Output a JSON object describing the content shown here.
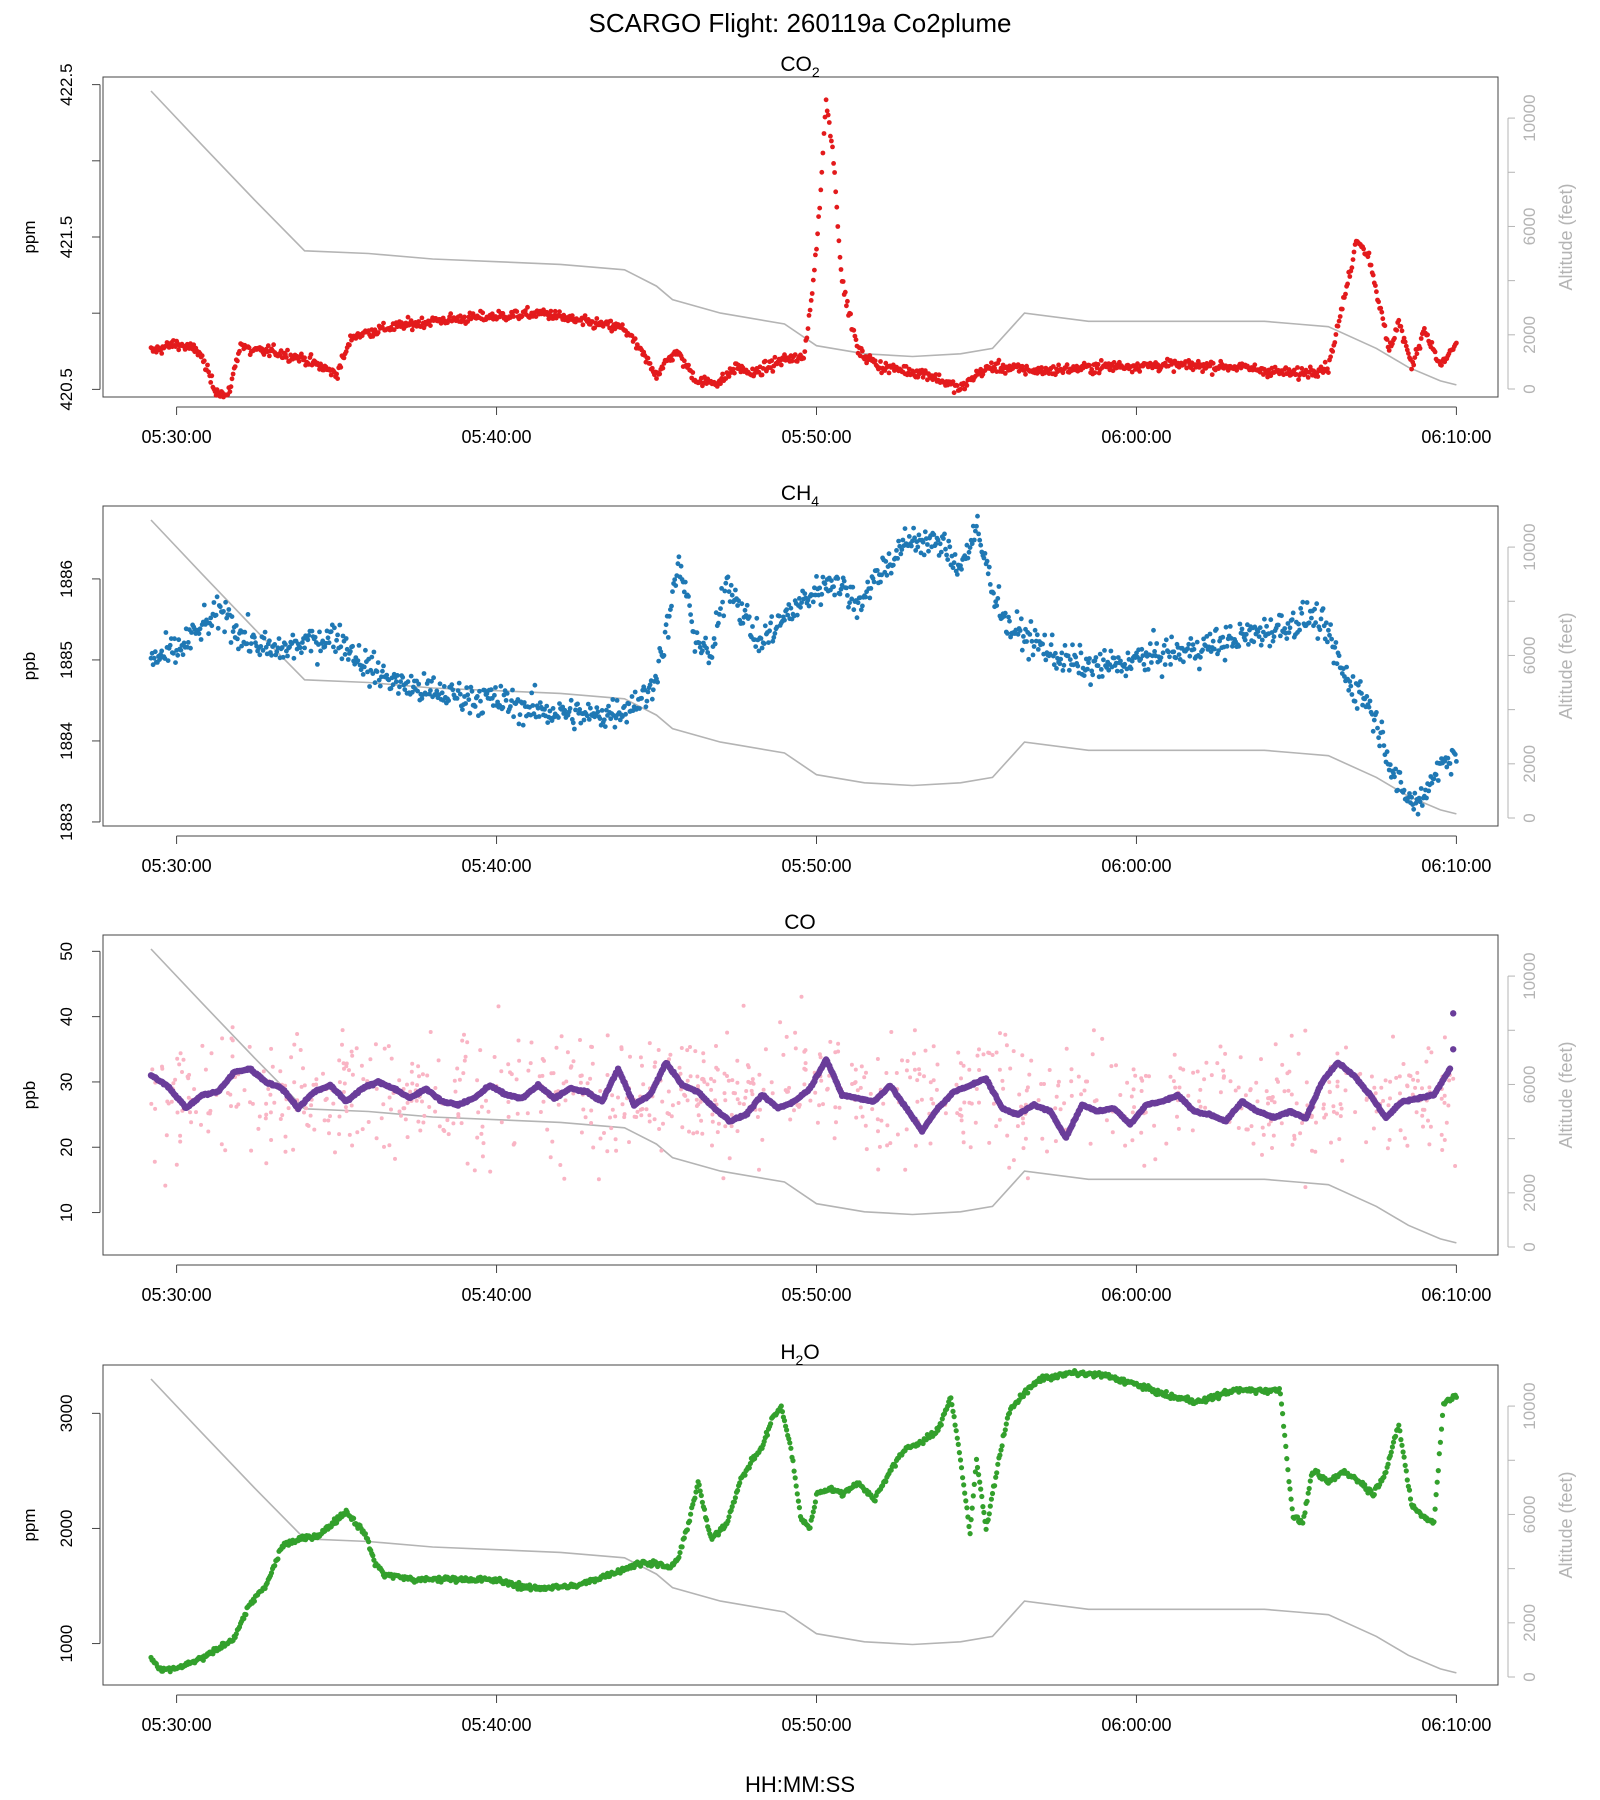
{
  "figure": {
    "title": "SCARGO Flight: 260119a  Co2plume",
    "xlabel": "HH:MM:SS",
    "x_ticks": [
      "05:30:00",
      "05:40:00",
      "05:50:00",
      "06:00:00",
      "06:10:00"
    ],
    "right_axis_label": "Altitude (feet)",
    "altitude_ticks": [
      0,
      2000,
      6000,
      10000
    ],
    "altitude_range": [
      0,
      11000
    ],
    "colors": {
      "co2": "#e31a1c",
      "ch4": "#1f78b4",
      "co_raw": "#f9b4c4",
      "co_smooth": "#6a3d9a",
      "h2o": "#33a02c",
      "altitude": "#b4b4b4",
      "axis": "#444444"
    }
  },
  "altitude_profile": {
    "name": "Altitude (feet)",
    "time_min": [
      -0.8,
      0.8,
      2.5,
      4.0,
      6.0,
      8.0,
      10.0,
      12.0,
      14.0,
      15.0,
      15.5,
      17.0,
      19.0,
      20.0,
      21.5,
      23.0,
      24.5,
      25.5,
      26.5,
      28.5,
      30.0,
      32.0,
      34.0,
      35.0,
      36.0,
      37.5,
      38.5,
      39.5,
      40.0
    ],
    "feet": [
      11000,
      9000,
      6900,
      5100,
      5000,
      4800,
      4700,
      4600,
      4400,
      3800,
      3300,
      2800,
      2400,
      1600,
      1300,
      1200,
      1300,
      1500,
      2800,
      2500,
      2500,
      2500,
      2500,
      2400,
      2300,
      1500,
      800,
      300,
      150
    ]
  },
  "chart_data": [
    {
      "type": "scatter",
      "title": "CO2",
      "title_main": "CO",
      "title_sub": "2",
      "ylabel": "ppm",
      "ylim": [
        420.45,
        422.55
      ],
      "yticks": [
        420.5,
        421.5,
        422.5
      ],
      "xlabel": "HH:MM:SS",
      "x_unit": "minutes after 05:30:00",
      "xlim": [
        -2.3,
        41.3
      ],
      "series": [
        {
          "name": "CO2",
          "color": "#e31a1c",
          "point_size": 2.4,
          "x": [
            -0.8,
            0,
            0.7,
            1.2,
            1.6,
            2.0,
            2.3,
            3.0,
            4.0,
            5.0,
            5.5,
            6.5,
            8.0,
            10.0,
            11.5,
            12.5,
            14.0,
            15.0,
            15.6,
            16.3,
            17.0,
            17.5,
            18.0,
            19.0,
            19.6,
            19.9,
            20.1,
            20.3,
            20.5,
            20.8,
            21.3,
            22.0,
            23.5,
            24.5,
            25.0,
            25.5,
            27.0,
            29.0,
            31.0,
            33.0,
            35.0,
            36.0,
            36.5,
            36.9,
            37.3,
            37.9,
            38.2,
            38.6,
            39.0,
            39.5,
            40.0
          ],
          "y": [
            420.75,
            420.8,
            420.75,
            420.5,
            420.45,
            420.8,
            420.75,
            420.75,
            420.7,
            420.6,
            420.85,
            420.9,
            420.95,
            420.98,
            421.0,
            420.95,
            420.9,
            420.6,
            420.75,
            420.55,
            420.55,
            420.65,
            420.6,
            420.7,
            420.7,
            421.2,
            421.7,
            422.4,
            422.1,
            421.2,
            420.75,
            420.65,
            420.6,
            420.5,
            420.6,
            420.65,
            420.62,
            420.65,
            420.66,
            420.65,
            420.6,
            420.65,
            421.1,
            421.5,
            421.35,
            420.75,
            420.95,
            420.65,
            420.9,
            420.65,
            420.8
          ]
        }
      ]
    },
    {
      "type": "scatter",
      "title": "CH4",
      "title_main": "CH",
      "title_sub": "4",
      "ylabel": "ppb",
      "ylim": [
        1882.95,
        1886.9
      ],
      "yticks": [
        1883,
        1884,
        1885,
        1886
      ],
      "xlabel": "HH:MM:SS",
      "x_unit": "minutes after 05:30:00",
      "xlim": [
        -2.3,
        41.3
      ],
      "series": [
        {
          "name": "CH4",
          "color": "#1f78b4",
          "point_size": 2.4,
          "x": [
            -0.8,
            0,
            0.8,
            1.5,
            2.0,
            3.0,
            4.0,
            5.0,
            6.0,
            7.0,
            8.0,
            9.0,
            10.0,
            11.0,
            12.0,
            13.0,
            14.0,
            14.8,
            15.3,
            15.7,
            16.2,
            16.7,
            17.2,
            17.7,
            18.2,
            18.7,
            19.5,
            20.5,
            21.3,
            22.0,
            23.0,
            24.0,
            24.5,
            25.0,
            25.5,
            26.0,
            26.5,
            27.5,
            28.5,
            29.5,
            30.5,
            31.5,
            32.5,
            33.5,
            34.5,
            35.5,
            36.0,
            36.5,
            37.2,
            37.7,
            38.2,
            38.8,
            39.3,
            40.0
          ],
          "y": [
            1885.0,
            1885.1,
            1885.4,
            1885.6,
            1885.3,
            1885.1,
            1885.2,
            1885.3,
            1884.9,
            1884.7,
            1884.6,
            1884.55,
            1884.5,
            1884.4,
            1884.35,
            1884.3,
            1884.4,
            1884.6,
            1885.3,
            1886.2,
            1885.3,
            1885.0,
            1886.0,
            1885.6,
            1885.2,
            1885.4,
            1885.7,
            1886.0,
            1885.7,
            1886.1,
            1886.5,
            1886.4,
            1886.15,
            1886.6,
            1885.9,
            1885.4,
            1885.3,
            1885.05,
            1884.9,
            1884.95,
            1885.05,
            1885.1,
            1885.2,
            1885.3,
            1885.4,
            1885.55,
            1885.3,
            1884.8,
            1884.5,
            1884.05,
            1883.4,
            1883.2,
            1883.6,
            1883.9
          ]
        }
      ]
    },
    {
      "type": "scatter",
      "title": "CO",
      "title_main": "CO",
      "title_sub": "",
      "ylabel": "ppb",
      "ylim": [
        3.5,
        52.5
      ],
      "yticks": [
        10,
        20,
        30,
        40,
        50
      ],
      "xlabel": "HH:MM:SS",
      "x_unit": "minutes after 05:30:00",
      "xlim": [
        -2.3,
        41.3
      ],
      "series": [
        {
          "name": "CO raw",
          "color": "#f9b4c4",
          "point_size": 2.0,
          "noise_band": 9,
          "x": [
            -0.8,
            40.0
          ],
          "y": [
            28,
            28
          ]
        },
        {
          "name": "CO smoothed",
          "color": "#6a3d9a",
          "point_size": 3.2,
          "x": [
            -0.8,
            -0.3,
            0.3,
            0.8,
            1.3,
            1.8,
            2.3,
            2.8,
            3.3,
            3.8,
            4.3,
            4.8,
            5.3,
            5.8,
            6.3,
            6.8,
            7.3,
            7.8,
            8.3,
            8.8,
            9.3,
            9.8,
            10.3,
            10.8,
            11.3,
            11.8,
            12.3,
            12.8,
            13.3,
            13.8,
            14.3,
            14.8,
            15.3,
            15.8,
            16.3,
            16.8,
            17.3,
            17.8,
            18.3,
            18.8,
            19.3,
            19.8,
            20.3,
            20.8,
            21.3,
            21.8,
            22.3,
            22.8,
            23.3,
            23.8,
            24.3,
            24.8,
            25.3,
            25.8,
            26.3,
            26.8,
            27.3,
            27.8,
            28.3,
            28.8,
            29.3,
            29.8,
            30.3,
            30.8,
            31.3,
            31.8,
            32.3,
            32.8,
            33.3,
            33.8,
            34.3,
            34.8,
            35.3,
            35.8,
            36.3,
            36.8,
            37.3,
            37.8,
            38.3,
            38.8,
            39.3,
            39.8
          ],
          "y": [
            31,
            29.5,
            26,
            28,
            28.5,
            31.5,
            32,
            30,
            29,
            26,
            28.5,
            29.5,
            27,
            29,
            30,
            29,
            27.5,
            29,
            27,
            26.5,
            27.5,
            29.5,
            28,
            27.5,
            29.5,
            27.5,
            29,
            28.5,
            27,
            32,
            26.5,
            28,
            33,
            29.5,
            28.5,
            26,
            24,
            25,
            28,
            26,
            27,
            29,
            33.5,
            28,
            27.5,
            27,
            29.5,
            26,
            22.5,
            26,
            28.5,
            29.5,
            30.5,
            26,
            25,
            26.5,
            25.5,
            21.5,
            26.5,
            25.5,
            26,
            23.5,
            26.5,
            27,
            28,
            25.5,
            25,
            24,
            27,
            25.5,
            24.5,
            25.5,
            24.5,
            30,
            33,
            31,
            28,
            24.5,
            27,
            27.5,
            28,
            32
          ]
        },
        {
          "name": "CO end points",
          "color": "#6a3d9a",
          "point_size": 3.2,
          "x": [
            39.9,
            39.9
          ],
          "y": [
            40.5,
            35
          ]
        }
      ]
    },
    {
      "type": "scatter",
      "title": "H2O",
      "title_main": "H",
      "title_sub": "2",
      "title_tail": "O",
      "ylabel": "ppm",
      "ylim": [
        640,
        3420
      ],
      "yticks": [
        1000,
        2000,
        3000
      ],
      "xlabel": "HH:MM:SS",
      "x_unit": "minutes after 05:30:00",
      "xlim": [
        -2.3,
        41.3
      ],
      "series": [
        {
          "name": "H2O",
          "color": "#33a02c",
          "point_size": 2.6,
          "x": [
            -0.8,
            -0.5,
            0.2,
            1.0,
            1.8,
            2.3,
            2.8,
            3.3,
            3.8,
            4.5,
            5.3,
            5.9,
            6.2,
            6.5,
            7.0,
            7.5,
            8.0,
            9.0,
            10.0,
            11.0,
            12.5,
            13.5,
            14.5,
            15.0,
            15.4,
            15.7,
            16.0,
            16.3,
            16.7,
            17.2,
            17.6,
            18.0,
            18.3,
            18.6,
            18.9,
            19.2,
            19.5,
            19.8,
            20.0,
            20.4,
            20.8,
            21.3,
            21.8,
            22.3,
            22.8,
            23.3,
            23.8,
            24.2,
            24.5,
            24.8,
            25.0,
            25.3,
            25.7,
            26.0,
            26.4,
            27.0,
            28.0,
            29.0,
            30.0,
            31.0,
            32.0,
            33.0,
            34.0,
            34.5,
            34.7,
            34.9,
            35.2,
            35.5,
            36.0,
            36.5,
            37.0,
            37.4,
            37.8,
            38.2,
            38.6,
            39.0,
            39.3,
            39.6,
            40.0
          ],
          "y": [
            880,
            760,
            800,
            900,
            1050,
            1350,
            1500,
            1850,
            1900,
            1950,
            2150,
            1950,
            1700,
            1600,
            1580,
            1550,
            1560,
            1560,
            1550,
            1480,
            1500,
            1600,
            1700,
            1700,
            1650,
            1750,
            2050,
            2400,
            1900,
            2050,
            2400,
            2600,
            2700,
            2950,
            3050,
            2700,
            2100,
            2000,
            2300,
            2350,
            2300,
            2400,
            2250,
            2500,
            2700,
            2750,
            2850,
            3150,
            2600,
            1950,
            2600,
            2000,
            2600,
            3000,
            3150,
            3300,
            3350,
            3330,
            3250,
            3150,
            3100,
            3200,
            3200,
            3200,
            2600,
            2100,
            2050,
            2500,
            2400,
            2500,
            2400,
            2300,
            2500,
            2900,
            2200,
            2100,
            2050,
            3100,
            3150
          ]
        }
      ]
    }
  ]
}
